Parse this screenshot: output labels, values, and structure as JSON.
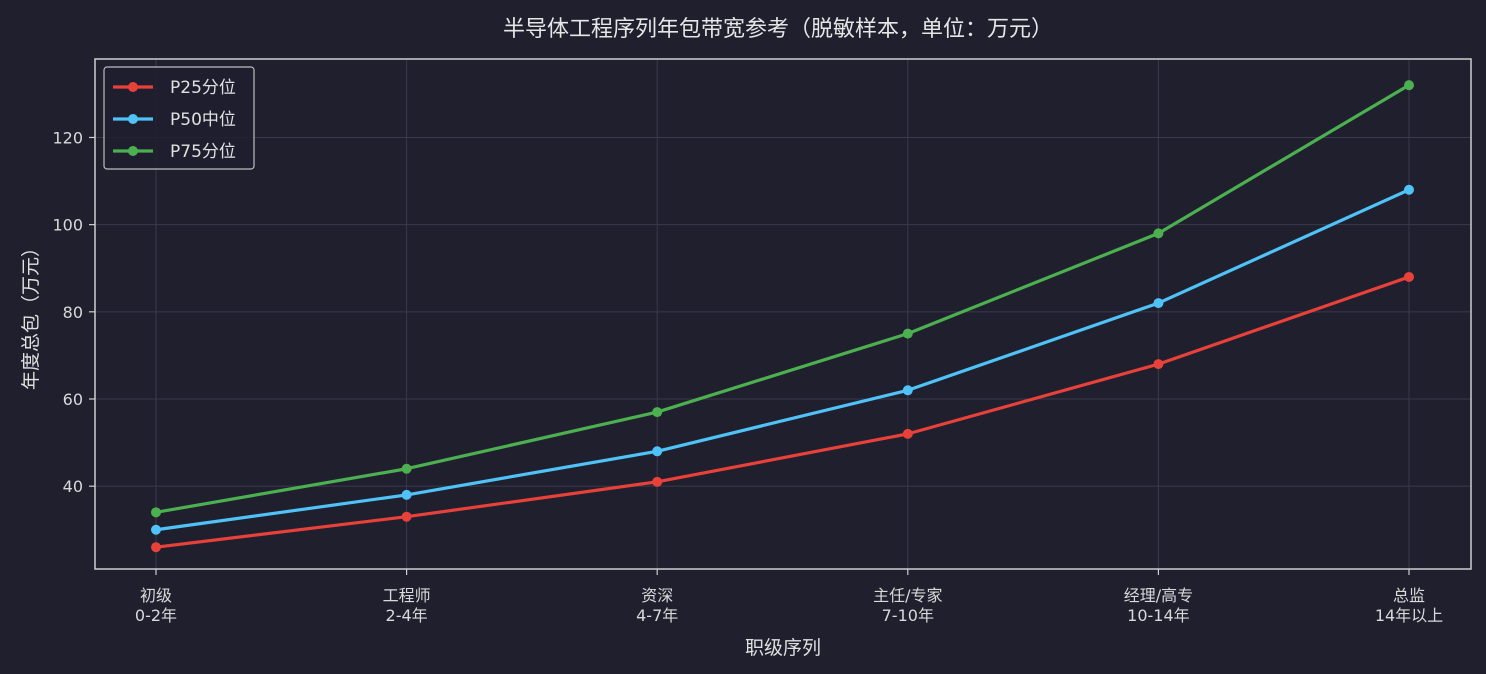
{
  "chart_data": {
    "type": "line",
    "title": "半导体工程序列年包带宽参考（脱敏样本，单位：万元）",
    "xlabel": "职级序列",
    "ylabel": "年度总包（万元）",
    "categories": [
      [
        "初级",
        "0-2年"
      ],
      [
        "工程师",
        "2-4年"
      ],
      [
        "资深",
        "4-7年"
      ],
      [
        "主任/专家",
        "7-10年"
      ],
      [
        "经理/高专",
        "10-14年"
      ],
      [
        "总监",
        "14年以上"
      ]
    ],
    "ylim": [
      21,
      138
    ],
    "yticks": [
      40,
      60,
      80,
      100,
      120
    ],
    "grid": true,
    "legend_position": "top-left",
    "series": [
      {
        "name": "P25分位",
        "color": "#e8413a",
        "values": [
          26,
          33,
          41,
          52,
          68,
          88
        ]
      },
      {
        "name": "P50中位",
        "color": "#4fc3f7",
        "values": [
          30,
          38,
          48,
          62,
          82,
          108
        ]
      },
      {
        "name": "P75分位",
        "color": "#4caf50",
        "values": [
          34,
          44,
          57,
          75,
          98,
          132
        ]
      }
    ]
  }
}
